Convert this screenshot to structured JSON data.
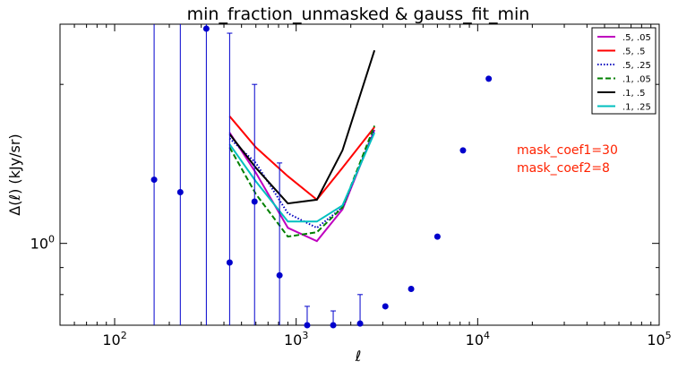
{
  "chart_data": {
    "type": "line",
    "title": "min_fraction_unmasked & gauss_fit_min",
    "xlabel": "ℓ",
    "ylabel": "Δ(ℓ) (kJy/sr)",
    "xscale": "log",
    "yscale": "log",
    "xlim": [
      50,
      100000
    ],
    "ylim": [
      0.7,
      2.6
    ],
    "x_tick_labels": [
      {
        "value": 100,
        "base": "10",
        "exp": "2"
      },
      {
        "value": 1000,
        "base": "10",
        "exp": "3"
      },
      {
        "value": 10000,
        "base": "10",
        "exp": "4"
      },
      {
        "value": 100000,
        "base": "10",
        "exp": "5"
      }
    ],
    "y_tick_labels": [
      {
        "value": 1.0,
        "label": "10",
        "exp": "0"
      }
    ],
    "points": {
      "color": "#0000cc",
      "data": [
        {
          "x": 165,
          "y": 1.32,
          "err_low": 0.7,
          "err_high": 2.6
        },
        {
          "x": 230,
          "y": 1.25,
          "err_low": 0.7,
          "err_high": 2.6
        },
        {
          "x": 320,
          "y": 2.55,
          "err_low": 0.7,
          "err_high": 2.6
        },
        {
          "x": 430,
          "y": 0.92,
          "err_low": 0.7,
          "err_high": 2.5
        },
        {
          "x": 590,
          "y": 1.2,
          "err_low": 0.7,
          "err_high": 2.0
        },
        {
          "x": 810,
          "y": 0.87,
          "err_low": 0.7,
          "err_high": 1.42
        },
        {
          "x": 1150,
          "y": 0.7,
          "err_low": 0.7,
          "err_high": 0.76
        },
        {
          "x": 1600,
          "y": 0.7,
          "err_low": 0.7,
          "err_high": 0.745
        },
        {
          "x": 2250,
          "y": 0.705,
          "err_low": 0.7,
          "err_high": 0.8
        },
        {
          "x": 3100,
          "y": 0.76,
          "err_low": null,
          "err_high": null
        },
        {
          "x": 4300,
          "y": 0.82,
          "err_low": null,
          "err_high": null
        },
        {
          "x": 6000,
          "y": 1.03,
          "err_low": null,
          "err_high": null
        },
        {
          "x": 8300,
          "y": 1.5,
          "err_low": null,
          "err_high": null
        },
        {
          "x": 11500,
          "y": 2.05,
          "err_low": null,
          "err_high": null
        }
      ]
    },
    "series": [
      {
        "name": ".5, .05",
        "color": "#bf00bf",
        "dash": "solid",
        "x": [
          430,
          600,
          900,
          1300,
          1800,
          2700
        ],
        "y": [
          1.62,
          1.36,
          1.07,
          1.01,
          1.16,
          1.64
        ]
      },
      {
        "name": ".5, .5",
        "color": "#ff0000",
        "dash": "solid",
        "x": [
          430,
          600,
          900,
          1300,
          1800,
          2700
        ],
        "y": [
          1.74,
          1.52,
          1.34,
          1.21,
          1.39,
          1.66
        ]
      },
      {
        "name": ".5, .25",
        "color": "#0000bf",
        "dash": "dotted",
        "x": [
          430,
          600,
          900,
          1300,
          1800,
          2700
        ],
        "y": [
          1.58,
          1.42,
          1.14,
          1.07,
          1.17,
          1.64
        ]
      },
      {
        "name": ".1, .05",
        "color": "#008000",
        "dash": "dashed",
        "x": [
          430,
          600,
          900,
          1300,
          1800,
          2700
        ],
        "y": [
          1.52,
          1.24,
          1.03,
          1.05,
          1.17,
          1.67
        ]
      },
      {
        "name": ".1, .5",
        "color": "#000000",
        "dash": "solid",
        "x": [
          430,
          600,
          900,
          1300,
          1800,
          2700
        ],
        "y": [
          1.61,
          1.39,
          1.19,
          1.21,
          1.5,
          2.32
        ]
      },
      {
        "name": ".1, .25",
        "color": "#00bfbf",
        "dash": "solid",
        "x": [
          430,
          600,
          900,
          1300,
          1800,
          2700
        ],
        "y": [
          1.54,
          1.31,
          1.1,
          1.1,
          1.18,
          1.62
        ]
      }
    ],
    "annotations": [
      {
        "text": "mask_coef1=30",
        "color": "#ff2200"
      },
      {
        "text": "mask_coef2=8",
        "color": "#ff2200"
      }
    ],
    "legend_position": "top-right",
    "grid": false
  }
}
